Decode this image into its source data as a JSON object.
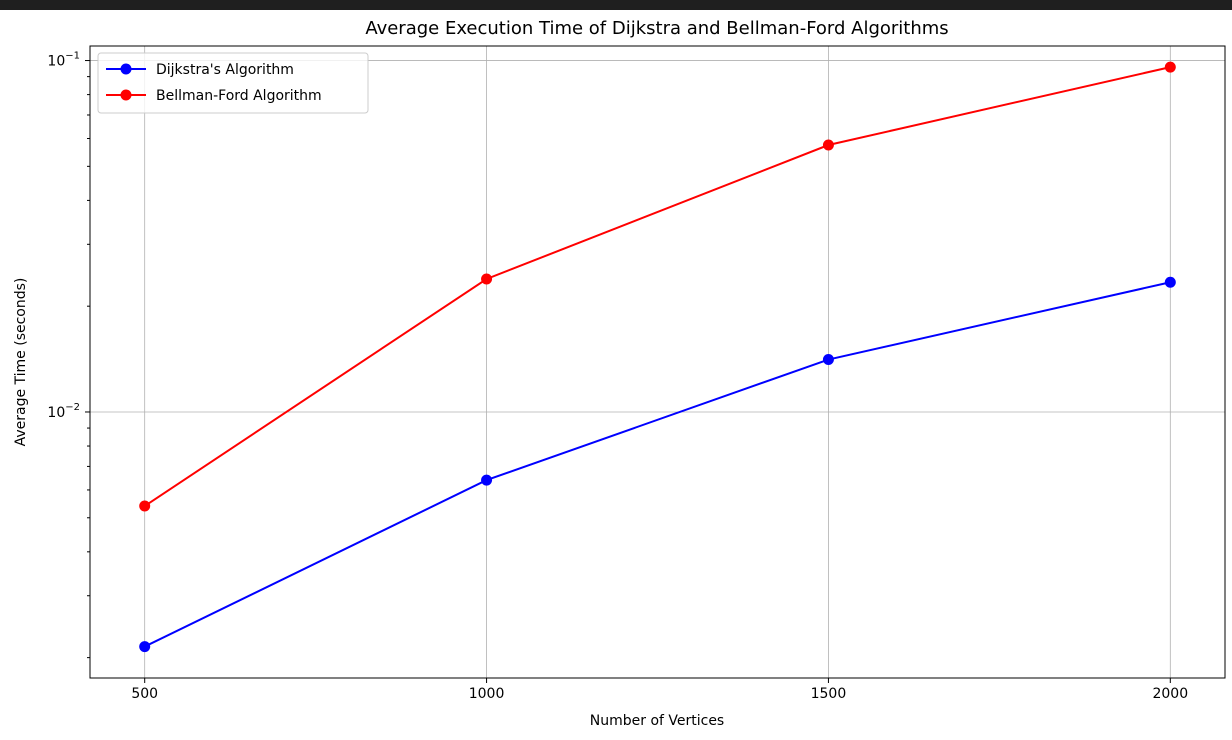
{
  "chart_data": {
    "type": "line",
    "title": "Average Execution Time of Dijkstra and Bellman-Ford Algorithms",
    "xlabel": "Number of Vertices",
    "ylabel": "Average Time (seconds)",
    "x": [
      500,
      1000,
      1500,
      2000
    ],
    "x_tick_labels": [
      "500",
      "1000",
      "1500",
      "2000"
    ],
    "xlim": [
      420,
      2080
    ],
    "yscale": "log",
    "ylim": [
      0.00175,
      0.11
    ],
    "y_major_ticks": [
      {
        "value": 0.01,
        "base": "10",
        "exponent": "−2"
      },
      {
        "value": 0.1,
        "base": "10",
        "exponent": "−1"
      }
    ],
    "y_minor_ticks": [
      0.002,
      0.003,
      0.004,
      0.005,
      0.006,
      0.007,
      0.008,
      0.009,
      0.02,
      0.03,
      0.04,
      0.05,
      0.06,
      0.07,
      0.08,
      0.09
    ],
    "grid": true,
    "legend_position": "top-left",
    "series": [
      {
        "name": "Dijkstra's Algorithm",
        "color": "#0000ff",
        "marker": "circle",
        "values": [
          0.00215,
          0.0064,
          0.0141,
          0.0234
        ]
      },
      {
        "name": "Bellman-Ford Algorithm",
        "color": "#ff0000",
        "marker": "circle",
        "values": [
          0.0054,
          0.0239,
          0.0575,
          0.0958
        ]
      }
    ]
  },
  "window": {
    "top_bar_color": "#1f1f1f"
  }
}
